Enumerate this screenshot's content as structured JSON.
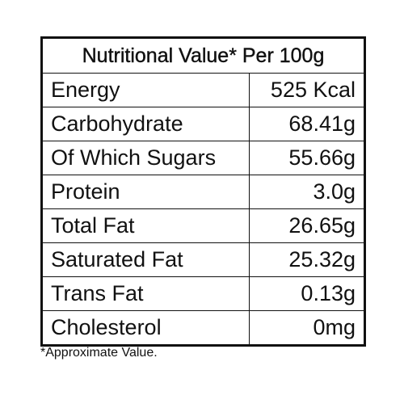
{
  "header": {
    "title": "Nutritional Value* Per 100g"
  },
  "table": {
    "rows": [
      [
        "Energy",
        "525 Kcal"
      ],
      [
        "Carbohydrate",
        "68.41g"
      ],
      [
        "Of Which Sugars",
        "55.66g"
      ],
      [
        "Protein",
        "3.0g"
      ],
      [
        "Total Fat",
        "26.65g"
      ],
      [
        "Saturated Fat",
        "25.32g"
      ],
      [
        "Trans Fat",
        "0.13g"
      ],
      [
        "Cholesterol",
        "0mg"
      ]
    ]
  },
  "footnote": "*Approximate Value."
}
